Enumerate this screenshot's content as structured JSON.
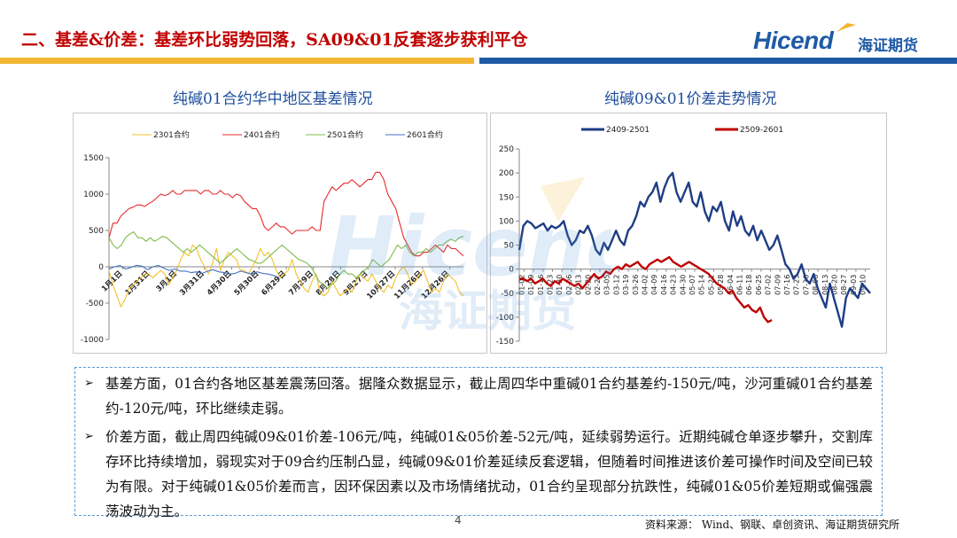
{
  "header": {
    "title": "二、基差&价差：基差环比弱势回落，SA09&01反套逐步获利平仓",
    "logo_text": "Hicend",
    "logo_cn": "海证期货",
    "colors": {
      "title": "#c00000",
      "band_yellow": "#f2b632",
      "band_blue": "#1f5aa6"
    }
  },
  "watermark": {
    "text": "Hicend",
    "cn": "海证期货"
  },
  "chart_data": [
    {
      "type": "line",
      "title": "纯碱01合约华中地区基差情况",
      "ylim": [
        -1000,
        1500
      ],
      "yticks": [
        -1000,
        -500,
        0,
        500,
        1000,
        1500
      ],
      "x_ticks": [
        "1月1日",
        "1月31日",
        "3月1日",
        "3月31日",
        "4月30日",
        "5月30日",
        "6月29日",
        "7月29日",
        "8月28日",
        "9月27日",
        "10月27日",
        "11月26日",
        "12月26日"
      ],
      "legend": "top",
      "series": [
        {
          "name": "2301合约",
          "color": "#f2c12e",
          "values": [
            -50,
            -250,
            -400,
            -550,
            -450,
            -300,
            -250,
            -200,
            -150,
            -100,
            -100,
            -150,
            -100,
            -50,
            -100,
            -250,
            -150,
            -50,
            100,
            200,
            150,
            300,
            250,
            100,
            0,
            -100,
            50,
            250,
            -50,
            100,
            200,
            150,
            100,
            -50,
            -50,
            -100,
            0,
            100,
            250,
            150,
            200,
            100,
            -50,
            -150,
            -100,
            -50,
            100,
            -100,
            -200,
            -300,
            -350,
            -200,
            -100,
            -350,
            -400,
            -350,
            -200,
            -300,
            -400,
            -350,
            -300,
            -350,
            -200,
            -100,
            -150,
            -200,
            -100,
            -200,
            -300,
            -350,
            -250,
            -300,
            -150,
            -50,
            0,
            -100,
            -250,
            -200,
            -100,
            -50,
            -200,
            -350,
            -300,
            -350,
            -200,
            -100,
            -150,
            -200,
            -350,
            -400
          ]
        },
        {
          "name": "2401合约",
          "color": "#e8292b",
          "values": [
            400,
            600,
            600,
            700,
            750,
            800,
            820,
            850,
            850,
            830,
            870,
            900,
            950,
            1000,
            980,
            1000,
            1050,
            1000,
            1000,
            1050,
            1050,
            1050,
            1050,
            1000,
            1050,
            1050,
            1000,
            1000,
            1050,
            1000,
            1000,
            950,
            1000,
            980,
            900,
            850,
            800,
            800,
            700,
            550,
            500,
            550,
            600,
            550,
            550,
            500,
            450,
            500,
            500,
            500,
            500,
            550,
            500,
            500,
            900,
            1000,
            1100,
            1050,
            1100,
            1150,
            1150,
            1200,
            1150,
            1100,
            1150,
            1200,
            1200,
            1300,
            1300,
            1200,
            1000,
            900,
            800,
            600,
            400,
            300,
            200,
            150,
            150,
            200,
            200,
            250,
            300,
            250,
            200,
            300,
            250,
            250,
            200,
            150
          ]
        },
        {
          "name": "2501合约",
          "color": "#7dbb4a",
          "values": [
            400,
            300,
            250,
            300,
            400,
            450,
            480,
            400,
            400,
            350,
            400,
            350,
            380,
            420,
            400,
            350,
            300,
            250,
            200,
            250,
            200,
            250,
            300,
            250,
            200,
            150,
            100,
            50,
            100,
            150,
            200,
            250,
            200,
            150,
            100,
            80,
            50,
            50,
            100,
            150,
            200,
            250,
            300,
            250,
            200,
            150,
            100,
            80,
            50,
            0,
            -100,
            -200,
            -250,
            -300,
            -250,
            -200,
            -100,
            -50,
            -100,
            -100,
            -150,
            -100,
            -50,
            0,
            100,
            50,
            0,
            50,
            100,
            200,
            300,
            250,
            300,
            200,
            150,
            200,
            200,
            250,
            200,
            250,
            300,
            300,
            350,
            380,
            350,
            400,
            420
          ]
        },
        {
          "name": "2601合约",
          "color": "#4472c4",
          "values": [
            -30,
            0,
            20,
            -30,
            -10,
            20,
            10,
            -40,
            0,
            20,
            -20,
            -50,
            -30,
            -60,
            -60,
            -80,
            -70,
            -90,
            -60,
            -40,
            -70,
            -80,
            -100,
            -90,
            -60,
            -80,
            -100,
            -70,
            -90,
            -100,
            -120,
            -150
          ]
        }
      ]
    },
    {
      "type": "line",
      "title": "纯碱09&01价差走势情况",
      "ylim": [
        -150,
        250
      ],
      "yticks": [
        -150,
        -100,
        -50,
        0,
        50,
        100,
        150,
        200,
        250
      ],
      "x_ticks": [
        "01-02",
        "01-09",
        "01-16",
        "01-23",
        "01-30",
        "02-06",
        "02-13",
        "02-20",
        "02-27",
        "03-05",
        "03-12",
        "03-19",
        "03-26",
        "04-02",
        "04-09",
        "04-16",
        "04-23",
        "04-30",
        "05-07",
        "05-14",
        "05-21",
        "05-28",
        "06-04",
        "06-11",
        "06-18",
        "06-25",
        "07-02",
        "07-09",
        "07-16",
        "07-23",
        "07-30",
        "08-06",
        "08-13",
        "08-20",
        "08-27",
        "09-03",
        "09-10"
      ],
      "legend": "top",
      "series": [
        {
          "name": "2409-2501",
          "color": "#1f3d85",
          "values": [
            40,
            90,
            100,
            95,
            85,
            90,
            95,
            80,
            90,
            85,
            90,
            100,
            70,
            50,
            60,
            80,
            75,
            90,
            70,
            40,
            30,
            55,
            40,
            60,
            80,
            60,
            50,
            80,
            90,
            110,
            140,
            130,
            150,
            160,
            180,
            140,
            170,
            190,
            200,
            160,
            140,
            160,
            180,
            140,
            130,
            160,
            120,
            100,
            130,
            120,
            140,
            100,
            80,
            120,
            90,
            110,
            80,
            70,
            90,
            60,
            80,
            60,
            40,
            50,
            70,
            40,
            10,
            0,
            -20,
            -10,
            10,
            -20,
            -30,
            -10,
            -40,
            -60,
            -80,
            -30,
            -60,
            -90,
            -120,
            -60,
            -40,
            -50,
            -60,
            -30,
            -40,
            -50
          ]
        },
        {
          "name": "2509-2601",
          "color": "#c00000",
          "values": [
            -20,
            -20,
            -25,
            -20,
            -30,
            -25,
            -20,
            -30,
            -35,
            -25,
            -30,
            -20,
            -25,
            -30,
            -35,
            -30,
            -40,
            -30,
            -20,
            -10,
            -20,
            -15,
            -5,
            -10,
            0,
            5,
            0,
            10,
            5,
            10,
            15,
            5,
            0,
            10,
            15,
            20,
            15,
            20,
            25,
            15,
            10,
            5,
            10,
            15,
            10,
            5,
            0,
            -5,
            -10,
            -20,
            -30,
            -35,
            -40,
            -50,
            -45,
            -60,
            -70,
            -80,
            -75,
            -85,
            -90,
            -80,
            -100,
            -110,
            -106
          ]
        }
      ]
    }
  ],
  "paragraphs": [
    {
      "bullet": "➢",
      "text": "基差方面，01合约各地区基差震荡回落。据隆众数据显示，截止周四华中重碱01合约基差约-150元/吨，沙河重碱01合约基差约-120元/吨，环比继续走弱。"
    },
    {
      "bullet": "➢",
      "text": "价差方面，截止周四纯碱09&01价差-106元/吨，纯碱01&05价差-52元/吨，延续弱势运行。近期纯碱仓单逐步攀升，交割库存环比持续增加，弱现实对于09合约压制凸显，纯碱09&01价差延续反套逻辑，但随着时间推进该价差可操作时间及空间已较为有限。对于纯碱01&05价差而言，因环保因素以及市场情绪扰动，01合约呈现部分抗跌性，纯碱01&05价差短期或偏强震荡波动为主。"
    }
  ],
  "footer": {
    "page_number": "4",
    "source": "资料来源： Wind、钢联、卓创资讯、海证期货研究所"
  }
}
